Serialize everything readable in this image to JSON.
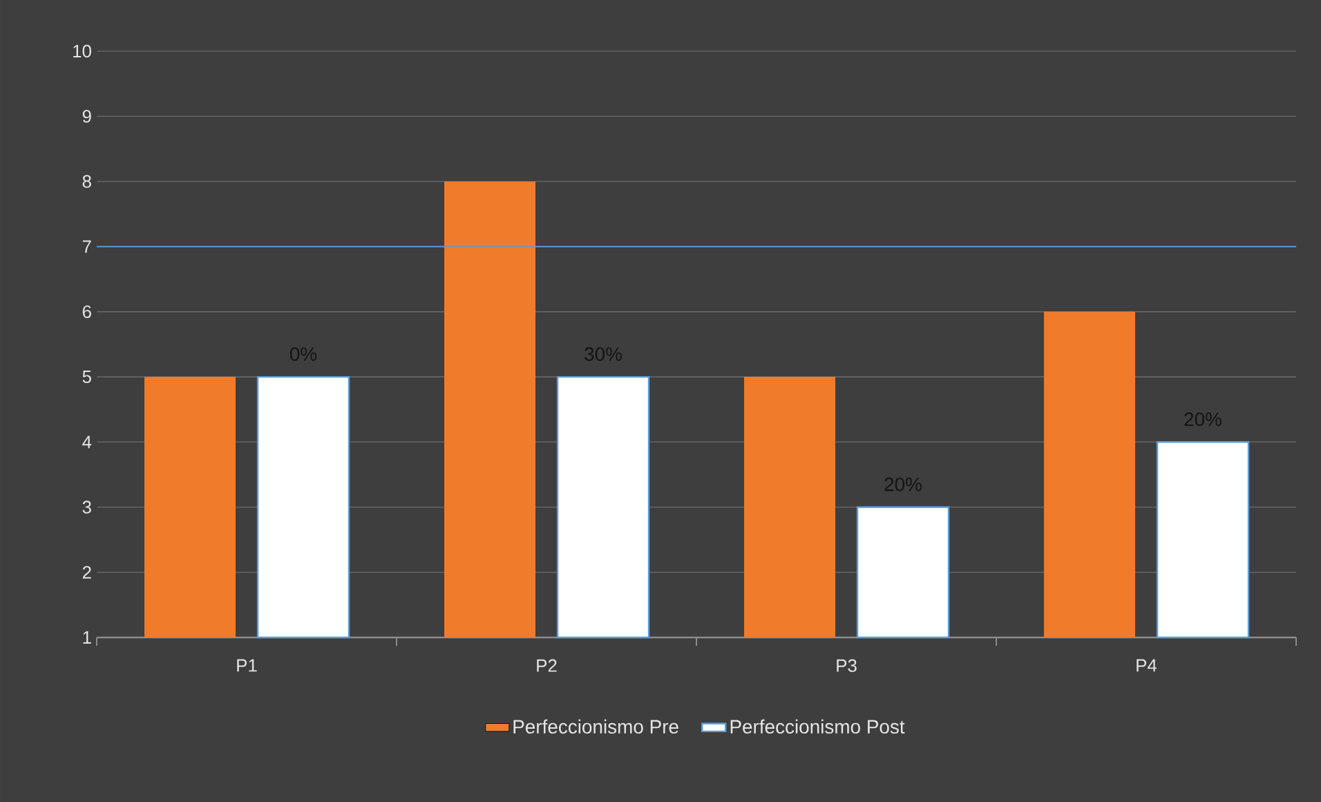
{
  "chart_data": {
    "type": "bar",
    "categories": [
      "P1",
      "P2",
      "P3",
      "P4"
    ],
    "series": [
      {
        "name": "Perfeccionismo Pre",
        "color": "#f07b2a",
        "values": [
          5,
          8,
          5,
          6
        ]
      },
      {
        "name": "Perfeccionismo Post",
        "color": "#ffffff",
        "values": [
          5,
          5,
          3,
          4
        ]
      }
    ],
    "annotations": [
      "0%",
      "30%",
      "20%",
      "20%"
    ],
    "ylim": [
      1,
      10
    ],
    "yticks": [
      1,
      2,
      3,
      4,
      5,
      6,
      7,
      8,
      9,
      10
    ],
    "ref_lines": [
      {
        "axis": "y",
        "value": 7,
        "color": "#5b9bd5"
      }
    ],
    "grid": "y",
    "legend": "bottom"
  }
}
